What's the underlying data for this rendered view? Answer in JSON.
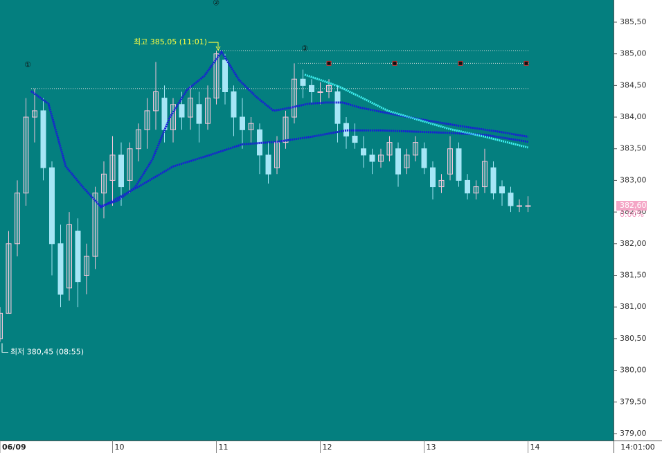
{
  "chart_data": {
    "type": "candlestick",
    "x": [
      535,
      540,
      545,
      550,
      555,
      560,
      565,
      570,
      575,
      580,
      585,
      590,
      595,
      600,
      605,
      610,
      615,
      620,
      625,
      630,
      635,
      640,
      645,
      650,
      655,
      660,
      665,
      670,
      675,
      680,
      685,
      690,
      695,
      700,
      705,
      710,
      715,
      720,
      725,
      730,
      735,
      740,
      745,
      750,
      755,
      760,
      765,
      770,
      775,
      780,
      785,
      790,
      795,
      800,
      805,
      810,
      815,
      820,
      825,
      830,
      835,
      840
    ],
    "open": [
      380.5,
      380.9,
      382.0,
      382.8,
      384.0,
      384.1,
      383.2,
      382.0,
      381.3,
      382.2,
      381.5,
      381.8,
      382.8,
      383.0,
      383.4,
      383.0,
      383.5,
      383.8,
      384.1,
      384.3,
      383.8,
      384.2,
      384.0,
      384.2,
      383.9,
      384.3,
      384.9,
      384.4,
      384.0,
      383.8,
      383.8,
      383.4,
      383.2,
      383.6,
      384.0,
      384.6,
      384.5,
      384.4,
      384.4,
      384.4,
      383.9,
      383.7,
      383.5,
      383.4,
      383.3,
      383.4,
      383.5,
      383.2,
      383.4,
      383.5,
      383.2,
      382.9,
      383.1,
      383.5,
      383.0,
      382.8,
      382.9,
      383.2,
      382.9,
      382.8,
      382.6,
      382.6
    ],
    "high": [
      381.0,
      382.2,
      383.0,
      384.3,
      384.45,
      384.3,
      383.3,
      382.3,
      382.5,
      382.4,
      382.0,
      382.9,
      383.3,
      383.7,
      383.6,
      383.6,
      383.9,
      384.3,
      384.87,
      384.5,
      384.3,
      384.4,
      384.5,
      384.4,
      384.5,
      385.05,
      385.0,
      384.5,
      384.3,
      384.0,
      383.9,
      383.6,
      383.7,
      384.1,
      384.85,
      384.75,
      384.6,
      384.55,
      384.6,
      384.5,
      384.0,
      383.9,
      383.7,
      383.5,
      383.5,
      383.7,
      383.6,
      383.5,
      383.7,
      383.6,
      383.3,
      383.1,
      383.7,
      383.6,
      383.1,
      383.0,
      383.5,
      383.3,
      383.0,
      382.9,
      382.7,
      382.75
    ],
    "low": [
      380.45,
      380.9,
      381.8,
      382.6,
      383.6,
      383.0,
      381.5,
      381.0,
      381.1,
      381.0,
      381.2,
      381.6,
      382.4,
      382.6,
      382.6,
      382.8,
      383.3,
      383.5,
      383.8,
      383.6,
      383.6,
      383.8,
      383.8,
      383.6,
      383.8,
      384.2,
      384.2,
      383.7,
      383.5,
      383.6,
      383.1,
      382.95,
      383.1,
      383.5,
      383.9,
      384.3,
      384.2,
      384.2,
      384.3,
      383.6,
      383.5,
      383.5,
      383.2,
      383.1,
      383.2,
      383.3,
      382.9,
      383.1,
      383.3,
      383.1,
      382.7,
      382.8,
      383.0,
      382.9,
      382.7,
      382.7,
      382.8,
      382.7,
      382.6,
      382.5,
      382.5,
      382.5
    ],
    "close": [
      380.9,
      382.0,
      382.8,
      384.0,
      384.1,
      383.2,
      382.0,
      381.2,
      382.3,
      381.4,
      381.8,
      382.8,
      383.1,
      383.4,
      382.9,
      383.5,
      383.8,
      384.1,
      384.4,
      383.8,
      384.2,
      384.0,
      384.3,
      383.9,
      384.3,
      385.0,
      384.4,
      384.0,
      383.8,
      383.9,
      383.4,
      383.1,
      383.6,
      384.0,
      384.6,
      384.5,
      384.4,
      384.4,
      384.5,
      383.9,
      383.7,
      383.6,
      383.4,
      383.3,
      383.4,
      383.6,
      383.1,
      383.4,
      383.6,
      383.2,
      382.9,
      383.0,
      383.5,
      383.0,
      382.8,
      382.9,
      383.3,
      382.8,
      382.8,
      382.6,
      382.6,
      382.6
    ],
    "up_color": "#f6c6da",
    "down_color": "#a6e6f6",
    "series": [
      {
        "color": "#1a1ad8",
        "x": [
          553,
          563,
          573,
          583,
          593,
          603,
          613,
          623,
          633,
          643,
          653,
          663,
          673,
          683,
          693,
          703,
          713,
          723,
          733,
          743,
          763,
          783,
          803,
          823,
          840
        ],
        "values": [
          384.41,
          384.21,
          383.22,
          382.89,
          382.59,
          382.68,
          382.89,
          383.33,
          383.99,
          384.43,
          384.65,
          385.03,
          384.59,
          384.32,
          384.1,
          384.15,
          384.21,
          384.23,
          384.23,
          384.15,
          384.04,
          383.94,
          383.85,
          383.77,
          383.69
        ]
      },
      {
        "color": "#1a1ad8",
        "x": [
          593,
          615,
          635,
          655,
          675,
          695,
          715,
          735,
          755,
          775,
          795,
          815,
          840
        ],
        "values": [
          382.57,
          382.9,
          383.22,
          383.39,
          383.57,
          383.61,
          383.69,
          383.79,
          383.79,
          383.77,
          383.75,
          383.72,
          383.61
        ]
      },
      {
        "color": "#3ff0f0",
        "x": [
          711,
          723,
          731,
          743,
          759,
          775,
          795,
          815,
          840
        ],
        "values": [
          384.67,
          384.56,
          384.48,
          384.32,
          384.1,
          383.97,
          383.81,
          383.69,
          383.52
        ]
      }
    ],
    "max": {
      "label": "최고 385,05 (11:01)",
      "value": 385.05,
      "x": 661
    },
    "min": {
      "label": "최저 380,45 (08:55)",
      "value": 380.45,
      "x": 535
    },
    "levels": [
      384.45,
      384.85
    ],
    "markers": [
      {
        "label": "①",
        "x": 551,
        "y": 384.82
      },
      {
        "label": "②",
        "x": 659.8,
        "y": 385.8
      },
      {
        "label": "③",
        "x": 711,
        "y": 385.08
      }
    ],
    "last": {
      "value": 382.6,
      "label": "382,60"
    },
    "change_label": "0.00%",
    "time_label": "14:01:00",
    "xlim": [
      535,
      889.4
    ],
    "xticks": [
      {
        "value": 535,
        "label": "06/09"
      },
      {
        "value": 600,
        "label": "10"
      },
      {
        "value": 660,
        "label": "11"
      },
      {
        "value": 720,
        "label": "12"
      },
      {
        "value": 780,
        "label": "13"
      },
      {
        "value": 840,
        "label": "14"
      }
    ],
    "ylim": [
      378.89,
      385.85
    ],
    "yticks": [
      {
        "value": 379,
        "label": "379,00"
      },
      {
        "value": 379.5,
        "label": "379,50"
      },
      {
        "value": 380,
        "label": "380,00"
      },
      {
        "value": 380.5,
        "label": "380,50"
      },
      {
        "value": 381,
        "label": "381,00"
      },
      {
        "value": 381.5,
        "label": "381,50"
      },
      {
        "value": 382,
        "label": "382,00"
      },
      {
        "value": 382.5,
        "label": "382,50"
      },
      {
        "value": 383,
        "label": "383,00"
      },
      {
        "value": 383.5,
        "label": "383,50"
      },
      {
        "value": 384,
        "label": "384,00"
      },
      {
        "value": 384.5,
        "label": "384,50"
      },
      {
        "value": 385,
        "label": "385,00"
      },
      {
        "value": 385.5,
        "label": "385,50"
      }
    ]
  }
}
